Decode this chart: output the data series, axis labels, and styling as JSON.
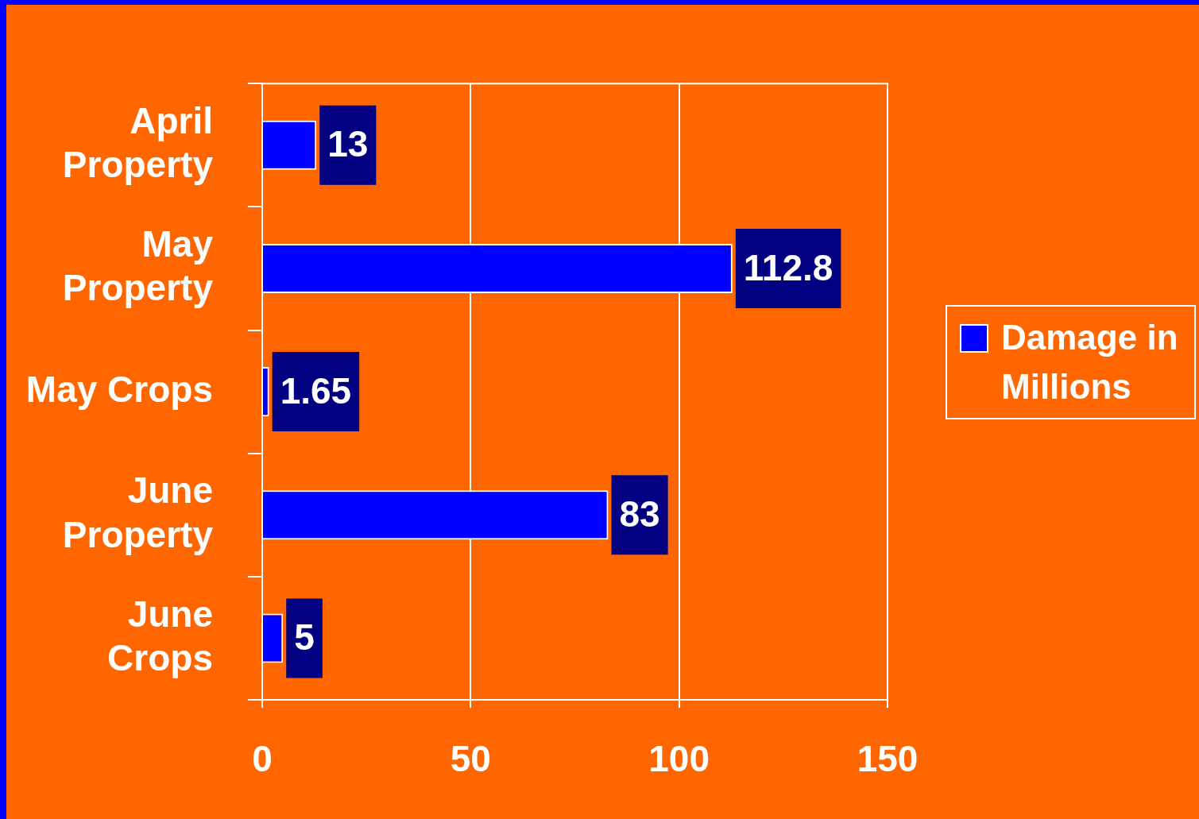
{
  "chart_data": {
    "type": "bar",
    "orientation": "horizontal",
    "categories": [
      "April\nProperty",
      "May\nProperty",
      "May Crops",
      "June\nProperty",
      "June\nCrops"
    ],
    "series": [
      {
        "name": "Damage in Millions",
        "color": "#0000ff",
        "values": [
          13,
          112.8,
          1.65,
          83,
          5
        ]
      }
    ],
    "xlim": [
      0,
      150
    ],
    "xticks": [
      0,
      50,
      100,
      150
    ],
    "grid": "x",
    "legend": "right",
    "data_labels": true
  }
}
